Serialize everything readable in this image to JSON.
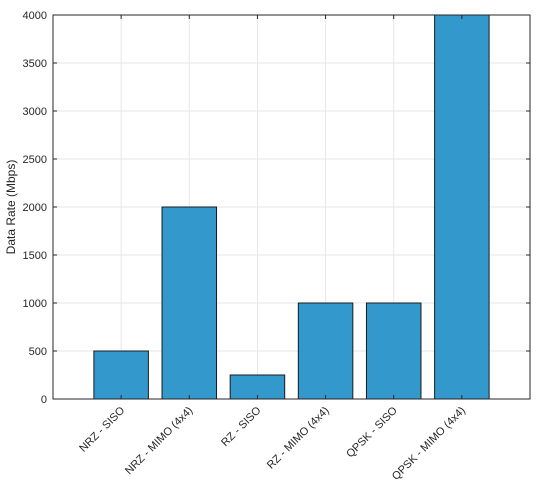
{
  "chart_data": {
    "type": "bar",
    "categories": [
      "NRZ - SISO",
      "NRZ - MIMO (4x4)",
      "RZ - SISO",
      "RZ - MIMO (4x4)",
      "QPSK - SISO",
      "QPSK - MIMO (4x4)"
    ],
    "values": [
      500,
      2000,
      250,
      1000,
      1000,
      4000
    ],
    "title": "",
    "xlabel": "",
    "ylabel": "Data Rate (Mbps)",
    "ylim": [
      0,
      4000
    ],
    "yticks": [
      0,
      500,
      1000,
      1500,
      2000,
      2500,
      3000,
      3500,
      4000
    ],
    "grid": true,
    "bar_color": "#3399cc",
    "bar_edge_color": "#1a1a1a"
  }
}
